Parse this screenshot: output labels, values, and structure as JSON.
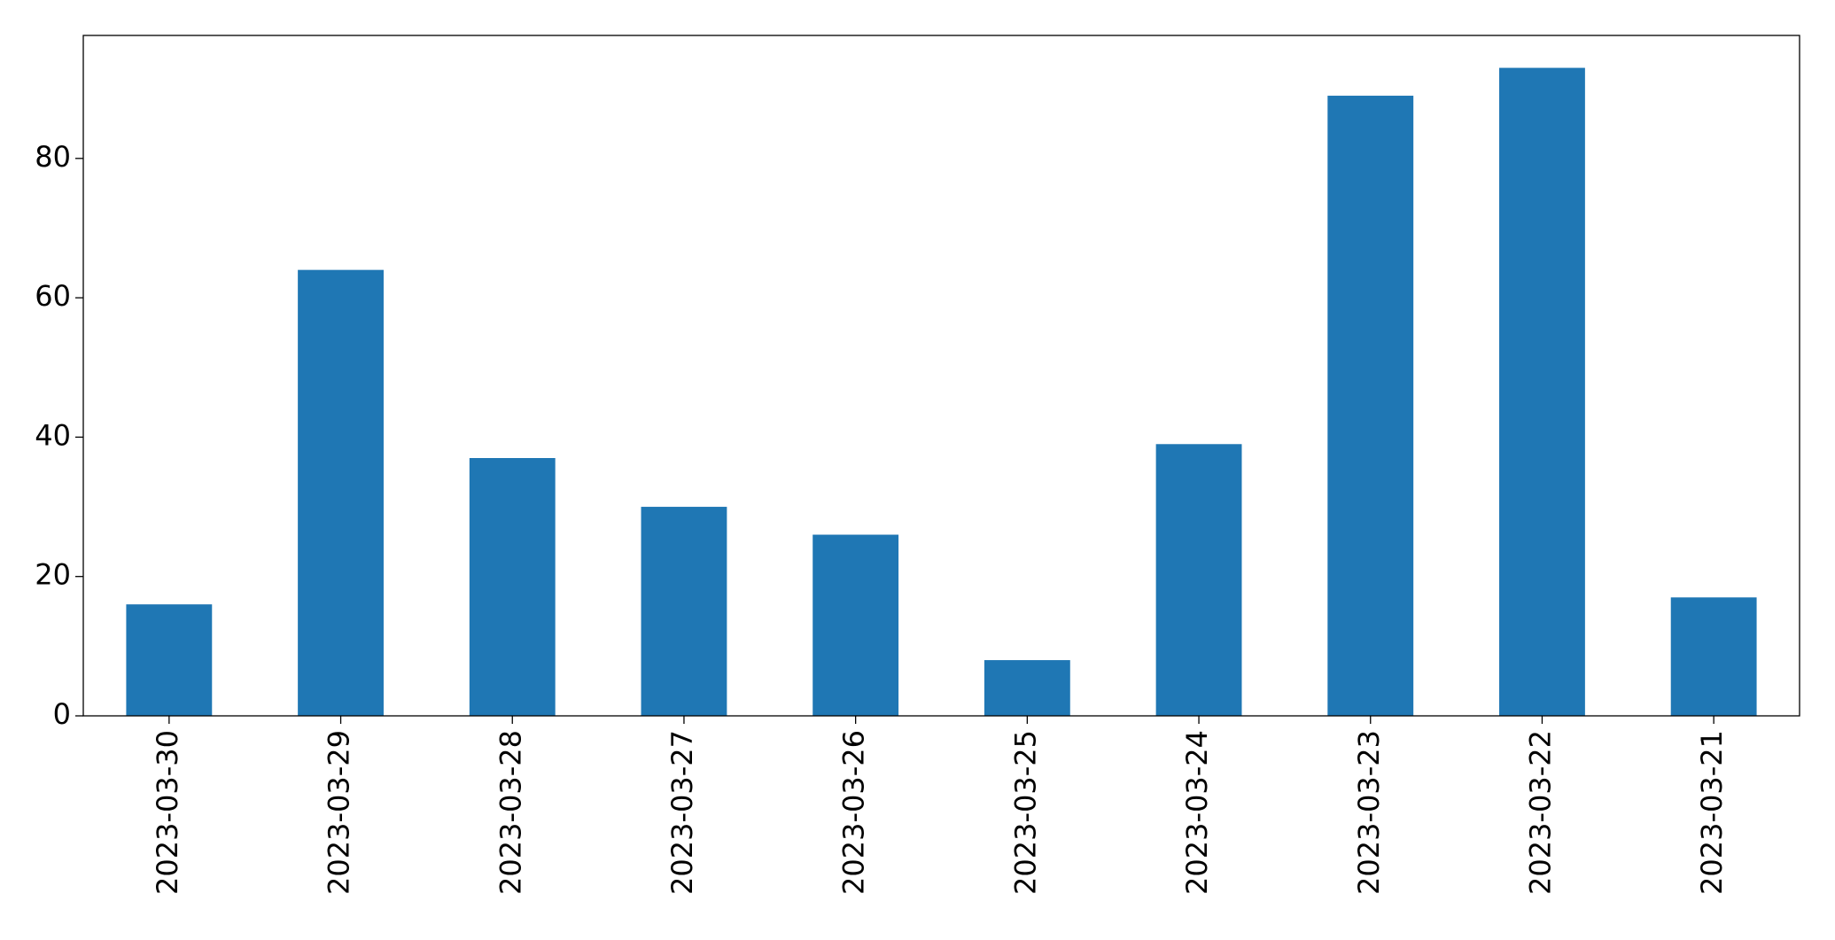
{
  "chart_data": {
    "type": "bar",
    "categories": [
      "2023-03-30",
      "2023-03-29",
      "2023-03-28",
      "2023-03-27",
      "2023-03-26",
      "2023-03-25",
      "2023-03-24",
      "2023-03-23",
      "2023-03-22",
      "2023-03-21"
    ],
    "values": [
      16,
      64,
      37,
      30,
      26,
      8,
      39,
      89,
      93,
      17
    ],
    "color": "#1f77b4",
    "ylim": [
      0,
      97.65
    ],
    "yticks": [
      0,
      20,
      40,
      60,
      80
    ],
    "grid": false
  }
}
